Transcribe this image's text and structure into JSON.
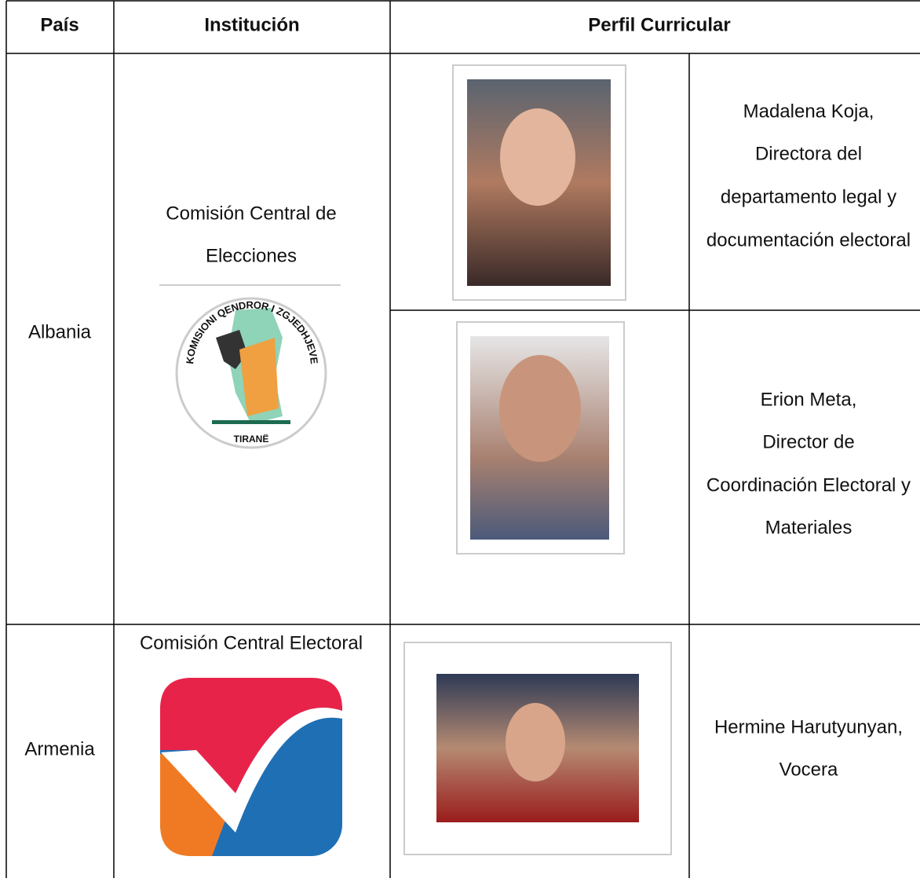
{
  "header": {
    "columns": [
      "País",
      "Institución",
      "Perfil Curricular"
    ]
  },
  "rows": [
    {
      "country": "Albania",
      "institution": {
        "name_lines": [
          "Comisión Central de",
          "Elecciones"
        ],
        "logo_text": [
          "KOMISIONI QENDROR I ZGJEDHJEVE",
          "TIRANË"
        ]
      },
      "profiles": [
        {
          "lines": [
            "Madalena Koja,",
            "Directora del",
            "departamento legal y",
            "documentación electoral"
          ]
        },
        {
          "lines": [
            "Erion Meta,",
            "Director de",
            "Coordinación Electoral y",
            "Materiales"
          ]
        }
      ]
    },
    {
      "country": "Armenia",
      "institution": {
        "name_lines": [
          "Comisión Central Electoral"
        ]
      },
      "profiles": [
        {
          "lines": [
            "Hermine Harutyunyan,",
            "Vocera"
          ]
        }
      ]
    }
  ]
}
